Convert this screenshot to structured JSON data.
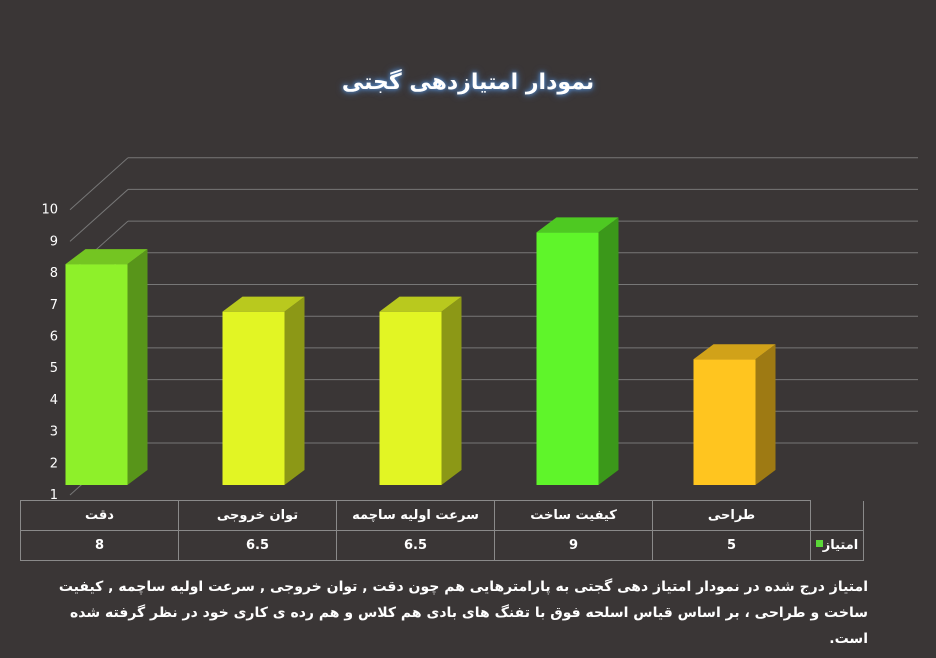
{
  "chart_data": {
    "type": "bar",
    "title": "نمودار امتیازدهی گجتی",
    "categories": [
      "دقت",
      "توان خروجی",
      "سرعت اولیه ساچمه",
      "کیفیت ساخت",
      "طراحی"
    ],
    "series": [
      {
        "name": "امتیاز",
        "values": [
          8,
          6.5,
          6.5,
          9,
          5
        ],
        "value_labels": [
          "8",
          "6.5",
          "6.5",
          "9",
          "5"
        ]
      }
    ],
    "bar_colors": [
      "#8ef02a",
      "#e2f524",
      "#e2f524",
      "#5ff52a",
      "#ffc51f"
    ],
    "ylim": [
      1,
      10
    ],
    "yticks": [
      "1",
      "2",
      "3",
      "4",
      "5",
      "6",
      "7",
      "8",
      "9",
      "10"
    ],
    "grid": true,
    "legend": "table"
  },
  "footnote": "امتیاز درج شده در نمودار امتیاز دهی گجتی  به پارامترهایی هم چون دقت , توان خروجی , سرعت اولیه ساچمه , کیفیت ساخت و طراحی ، بر اساس قیاس اسلحه فوق با تفنگ های بادی هم کلاس و هم رده ی کاری خود در نظر گرفته شده است."
}
